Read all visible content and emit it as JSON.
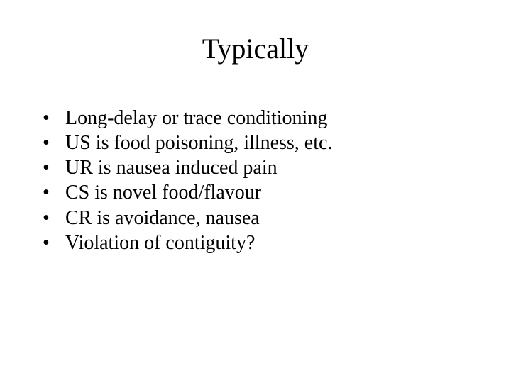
{
  "slide": {
    "title": "Typically",
    "bullets": [
      "Long-delay or trace conditioning",
      "US is food poisoning, illness, etc.",
      "UR is nausea induced pain",
      "CS is novel food/flavour",
      "CR is avoidance, nausea",
      "Violation of contiguity?"
    ],
    "title_color": "#000000",
    "text_color": "#000000",
    "background_color": "#ffffff",
    "title_fontsize": 40,
    "body_fontsize": 28,
    "font_family": "Times New Roman"
  }
}
